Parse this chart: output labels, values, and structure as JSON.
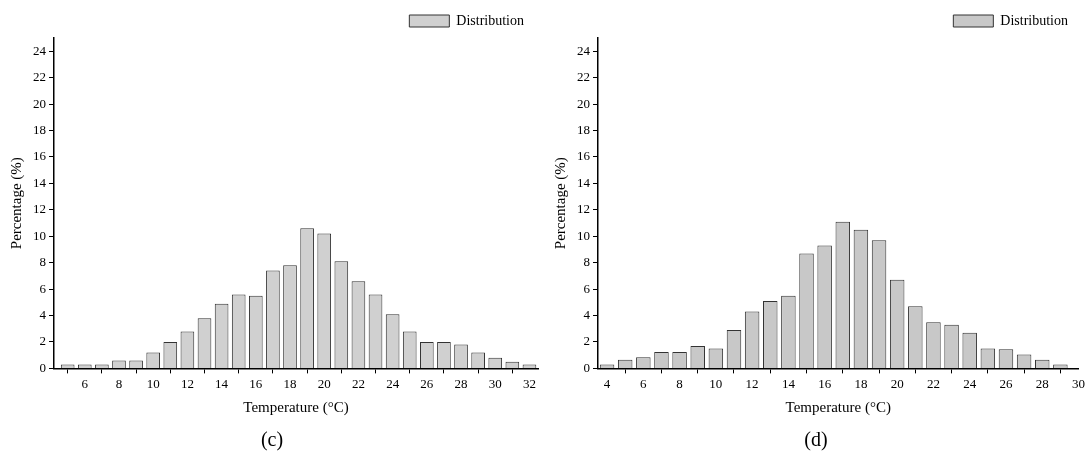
{
  "chart_data": [
    {
      "type": "histogram",
      "xlabel": "Temperature (°C)",
      "ylabel": "Percentage (%)",
      "bins": [
        4.5,
        5.5,
        6.5,
        7.5,
        8.5,
        9.5,
        10.5,
        11.5,
        12.5,
        13.5,
        14.5,
        15.5,
        16.5,
        17.5,
        18.5,
        19.5,
        20.5,
        21.5,
        22.5,
        23.5,
        24.5,
        25.5,
        26.5,
        27.5,
        28.5,
        29.5,
        30.5,
        31.5,
        32.5
      ],
      "series": [
        {
          "name": "Distribution",
          "color": "#d0d0d0",
          "values": [
            0.3,
            0.3,
            0.3,
            0.6,
            0.6,
            1.2,
            2.0,
            2.8,
            3.8,
            4.9,
            5.6,
            5.5,
            7.4,
            7.8,
            10.6,
            10.2,
            8.1,
            6.6,
            5.6,
            4.1,
            2.8,
            2.0,
            2.0,
            1.8,
            1.2,
            0.8,
            0.5,
            0.3
          ]
        }
      ],
      "xlim": [
        4.2,
        32.5
      ],
      "xticks": [
        6,
        8,
        10,
        12,
        14,
        16,
        18,
        20,
        22,
        24,
        26,
        28,
        30,
        32
      ],
      "ylim": [
        0,
        25
      ],
      "yticks": [
        0,
        2,
        4,
        6,
        8,
        10,
        12,
        14,
        16,
        18,
        20,
        22,
        24
      ],
      "grid": false,
      "legend": "top right",
      "annotations": [
        "(c)"
      ]
    },
    {
      "type": "histogram",
      "xlabel": "Temperature (°C)",
      "ylabel": "Percentage (%)",
      "bins": [
        3.5,
        4.5,
        5.5,
        6.5,
        7.5,
        8.5,
        9.5,
        10.5,
        11.5,
        12.5,
        13.5,
        14.5,
        15.5,
        16.5,
        17.5,
        18.5,
        19.5,
        20.5,
        21.5,
        22.5,
        23.5,
        24.5,
        25.5,
        26.5,
        27.5,
        28.5,
        29.5
      ],
      "series": [
        {
          "name": "Distribution",
          "color": "#c8c8c8",
          "values": [
            0.3,
            0.65,
            0.85,
            1.25,
            1.25,
            1.7,
            1.5,
            2.9,
            4.3,
            5.1,
            5.5,
            8.7,
            9.3,
            11.1,
            10.5,
            9.7,
            6.7,
            4.7,
            3.5,
            3.3,
            2.7,
            1.5,
            1.45,
            1.05,
            0.65,
            0.3
          ]
        }
      ],
      "xlim": [
        3.5,
        30
      ],
      "xticks": [
        4,
        6,
        8,
        10,
        12,
        14,
        16,
        18,
        20,
        22,
        24,
        26,
        28,
        30
      ],
      "ylim": [
        0,
        25
      ],
      "yticks": [
        0,
        2,
        4,
        6,
        8,
        10,
        12,
        14,
        16,
        18,
        20,
        22,
        24
      ],
      "grid": false,
      "legend": "top right",
      "annotations": [
        "(d)"
      ]
    }
  ]
}
